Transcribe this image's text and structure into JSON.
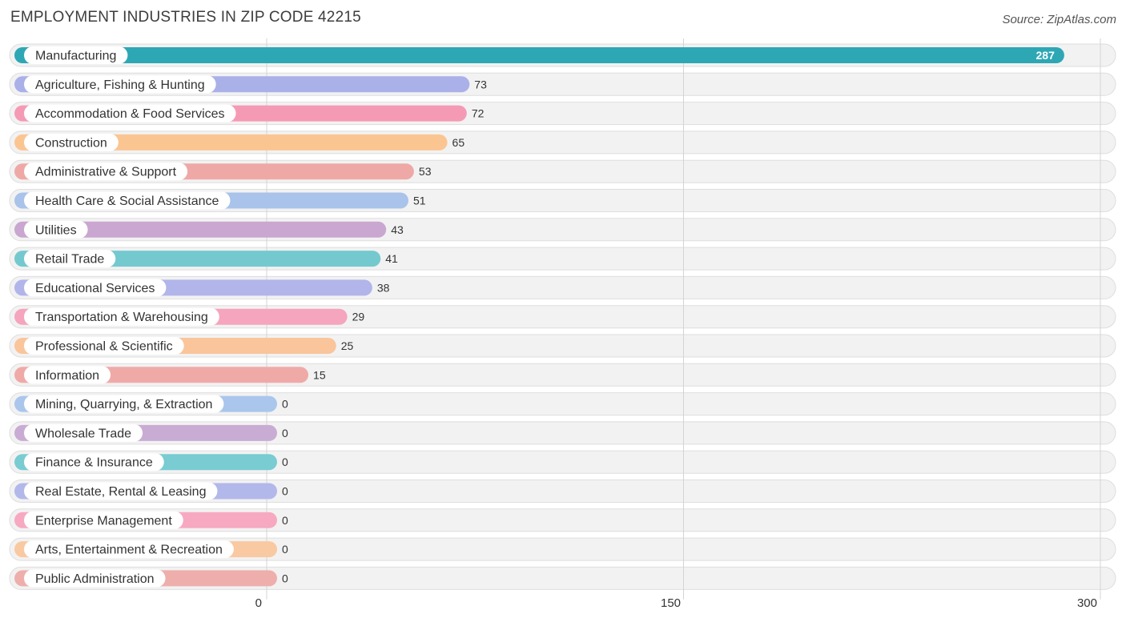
{
  "header": {
    "title": "EMPLOYMENT INDUSTRIES IN ZIP CODE 42215",
    "source": "Source: ZipAtlas.com"
  },
  "chart_data": {
    "type": "bar",
    "orientation": "horizontal",
    "title": "EMPLOYMENT INDUSTRIES IN ZIP CODE 42215",
    "xlim": [
      0,
      300
    ],
    "xticks": [
      0,
      150,
      300
    ],
    "grid": true,
    "categories": [
      "Manufacturing",
      "Agriculture, Fishing & Hunting",
      "Accommodation & Food Services",
      "Construction",
      "Administrative & Support",
      "Health Care & Social Assistance",
      "Utilities",
      "Retail Trade",
      "Educational Services",
      "Transportation & Warehousing",
      "Professional & Scientific",
      "Information",
      "Mining, Quarrying, & Extraction",
      "Wholesale Trade",
      "Finance & Insurance",
      "Real Estate, Rental & Leasing",
      "Enterprise Management",
      "Arts, Entertainment & Recreation",
      "Public Administration"
    ],
    "values": [
      287,
      73,
      72,
      65,
      53,
      51,
      43,
      41,
      38,
      29,
      25,
      15,
      0,
      0,
      0,
      0,
      0,
      0,
      0
    ],
    "colors": [
      "#2ea7b5",
      "#aab0e8",
      "#f59ab5",
      "#fbc592",
      "#eea9a6",
      "#a9c3ea",
      "#c9a7d0",
      "#74c9cf",
      "#b1b5e9",
      "#f5a5bd",
      "#fac59b",
      "#efaaa8",
      "#aac6ec",
      "#c9acd3",
      "#79ccd1",
      "#b3b8ea",
      "#f7a9c2",
      "#f9c9a2",
      "#eeaeac"
    ]
  }
}
